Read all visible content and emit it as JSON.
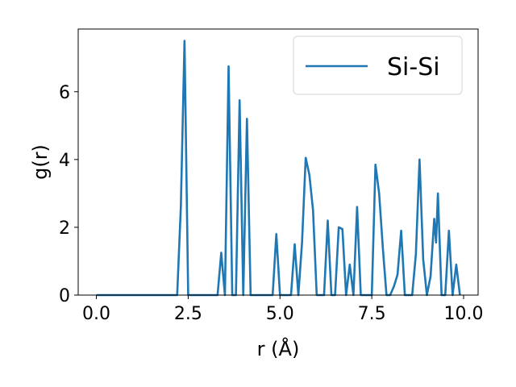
{
  "chart_data": {
    "type": "line",
    "xlabel": "r (Å)",
    "ylabel": "g(r)",
    "xlim": [
      -0.495,
      10.395
    ],
    "ylim": [
      0,
      7.85
    ],
    "x_ticks": [
      0.0,
      2.5,
      5.0,
      7.5,
      10.0
    ],
    "x_tick_labels": [
      "0.0",
      "2.5",
      "5.0",
      "7.5",
      "10.0"
    ],
    "y_ticks": [
      0,
      2,
      4,
      6
    ],
    "y_tick_labels": [
      "0",
      "2",
      "4",
      "6"
    ],
    "grid": false,
    "legend_position": "top-right",
    "series": [
      {
        "name": "Si-Si",
        "color": "#1f77b4",
        "x": [
          0.0,
          0.1,
          0.2,
          0.3,
          0.4,
          0.5,
          0.6,
          0.7,
          0.8,
          0.9,
          1.0,
          1.1,
          1.2,
          1.3,
          1.4,
          1.5,
          1.6,
          1.7,
          1.8,
          1.9,
          2.0,
          2.1,
          2.2,
          2.3,
          2.4,
          2.5,
          2.6,
          2.7,
          2.8,
          2.9,
          3.0,
          3.1,
          3.2,
          3.3,
          3.4,
          3.5,
          3.6,
          3.7,
          3.8,
          3.9,
          4.0,
          4.1,
          4.2,
          4.3,
          4.4,
          4.5,
          4.6,
          4.7,
          4.8,
          4.9,
          5.0,
          5.1,
          5.2,
          5.3,
          5.4,
          5.5,
          5.6,
          5.7,
          5.8,
          5.9,
          6.0,
          6.1,
          6.2,
          6.3,
          6.4,
          6.5,
          6.6,
          6.7,
          6.8,
          6.9,
          7.0,
          7.1,
          7.2,
          7.3,
          7.4,
          7.5,
          7.6,
          7.7,
          7.8,
          7.9,
          8.0,
          8.1,
          8.2,
          8.3,
          8.4,
          8.5,
          8.6,
          8.7,
          8.8,
          8.9,
          9.0,
          9.1,
          9.2,
          9.25,
          9.3,
          9.4,
          9.5,
          9.6,
          9.7,
          9.8,
          9.9
        ],
        "y": [
          0,
          0,
          0,
          0,
          0,
          0,
          0,
          0,
          0,
          0,
          0,
          0,
          0,
          0,
          0,
          0,
          0,
          0,
          0,
          0,
          0,
          0,
          0,
          2.6,
          7.5,
          0,
          0,
          0,
          0,
          0,
          0,
          0,
          0,
          0,
          1.25,
          0,
          6.75,
          0,
          0,
          5.75,
          0,
          5.2,
          0,
          0,
          0,
          0,
          0,
          0,
          0,
          1.8,
          0,
          0,
          0,
          0,
          1.5,
          0,
          1.55,
          4.05,
          3.55,
          2.5,
          0,
          0,
          0,
          2.2,
          0,
          0,
          2.0,
          1.95,
          0,
          0.9,
          0,
          2.6,
          0,
          0,
          0,
          0,
          3.85,
          3.0,
          1.4,
          0,
          0,
          0.25,
          0.6,
          1.9,
          0,
          0,
          0,
          1.2,
          4.0,
          1.05,
          0,
          0.55,
          2.25,
          1.55,
          3.0,
          0,
          0,
          1.9,
          0,
          0.9,
          0
        ]
      }
    ]
  }
}
